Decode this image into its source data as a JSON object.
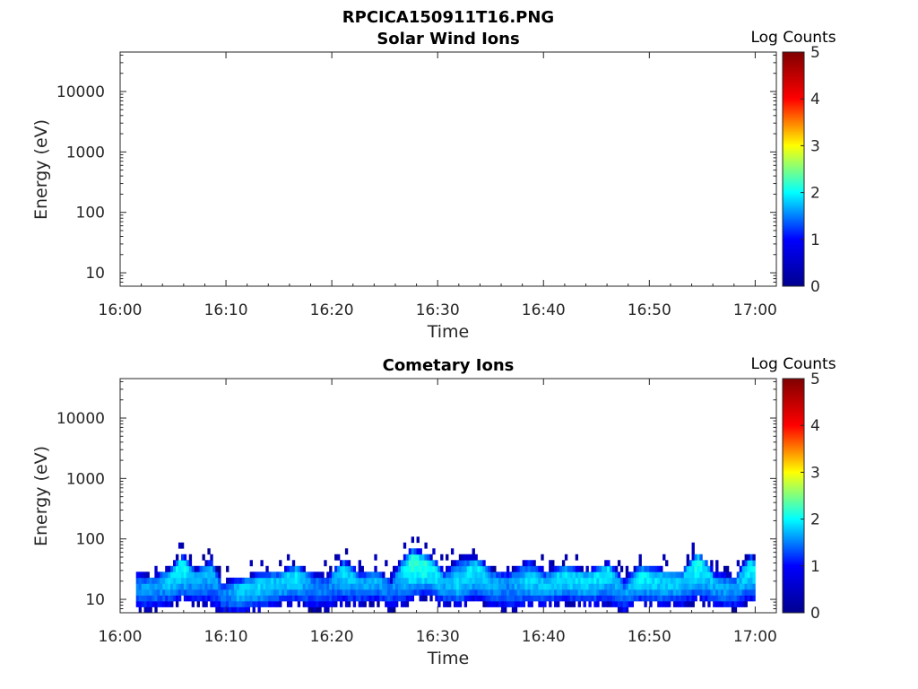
{
  "figure_title": "RPCICA150911T16.PNG",
  "colorbar": {
    "label": "Log Counts",
    "ticks": [
      "0",
      "1",
      "2",
      "3",
      "4",
      "5"
    ],
    "range": [
      0,
      5
    ],
    "colormap": [
      "#00008f",
      "#0000ff",
      "#00ffff",
      "#ffff00",
      "#ff0000",
      "#800000"
    ]
  },
  "chart_data": [
    {
      "type": "heatmap",
      "title": "Solar Wind Ions",
      "xlabel": "Time",
      "ylabel": "Energy (eV)",
      "x_ticks": [
        "16:00",
        "16:10",
        "16:20",
        "16:30",
        "16:40",
        "16:50",
        "17:00"
      ],
      "x_range_minutes": [
        0,
        62
      ],
      "y_ticks": [
        "10",
        "100",
        "1000",
        "10000"
      ],
      "y_range": [
        6,
        45000
      ],
      "y_scale": "log",
      "grid": false,
      "data": []
    },
    {
      "type": "heatmap",
      "title": "Cometary Ions",
      "xlabel": "Time",
      "ylabel": "Energy (eV)",
      "x_ticks": [
        "16:00",
        "16:10",
        "16:20",
        "16:30",
        "16:40",
        "16:50",
        "17:00"
      ],
      "x_range_minutes": [
        0,
        62
      ],
      "y_ticks": [
        "10",
        "100",
        "1000",
        "10000"
      ],
      "y_range": [
        6,
        45000
      ],
      "y_scale": "log",
      "grid": false,
      "data_time_range": [
        "16:01:30",
        "17:00:00"
      ],
      "band_profile": [
        {
          "t": 1.5,
          "peak_eV": 16,
          "low_eV": 7,
          "high_eV": 28,
          "peak_log_counts": 1.3
        },
        {
          "t": 3.0,
          "peak_eV": 17,
          "low_eV": 7,
          "high_eV": 25,
          "peak_log_counts": 1.4
        },
        {
          "t": 4.5,
          "peak_eV": 22,
          "low_eV": 8,
          "high_eV": 32,
          "peak_log_counts": 1.6
        },
        {
          "t": 5.8,
          "peak_eV": 40,
          "low_eV": 10,
          "high_eV": 55,
          "peak_log_counts": 2.0
        },
        {
          "t": 7.0,
          "peak_eV": 22,
          "low_eV": 9,
          "high_eV": 32,
          "peak_log_counts": 1.4
        },
        {
          "t": 8.5,
          "peak_eV": 30,
          "low_eV": 8,
          "high_eV": 45,
          "peak_log_counts": 1.5
        },
        {
          "t": 9.5,
          "peak_eV": 12,
          "low_eV": 6,
          "high_eV": 20,
          "peak_log_counts": 1.2
        },
        {
          "t": 11.0,
          "peak_eV": 15,
          "low_eV": 6,
          "high_eV": 22,
          "peak_log_counts": 1.6
        },
        {
          "t": 13.0,
          "peak_eV": 18,
          "low_eV": 7,
          "high_eV": 28,
          "peak_log_counts": 1.7
        },
        {
          "t": 15.0,
          "peak_eV": 20,
          "low_eV": 8,
          "high_eV": 30,
          "peak_log_counts": 1.6
        },
        {
          "t": 16.5,
          "peak_eV": 26,
          "low_eV": 9,
          "high_eV": 38,
          "peak_log_counts": 1.8
        },
        {
          "t": 18.0,
          "peak_eV": 18,
          "low_eV": 7,
          "high_eV": 28,
          "peak_log_counts": 1.3
        },
        {
          "t": 19.5,
          "peak_eV": 16,
          "low_eV": 7,
          "high_eV": 25,
          "peak_log_counts": 1.2
        },
        {
          "t": 21.0,
          "peak_eV": 32,
          "low_eV": 9,
          "high_eV": 45,
          "peak_log_counts": 1.8
        },
        {
          "t": 22.5,
          "peak_eV": 18,
          "low_eV": 8,
          "high_eV": 28,
          "peak_log_counts": 1.4
        },
        {
          "t": 24.0,
          "peak_eV": 22,
          "low_eV": 9,
          "high_eV": 32,
          "peak_log_counts": 1.5
        },
        {
          "t": 25.5,
          "peak_eV": 14,
          "low_eV": 7,
          "high_eV": 22,
          "peak_log_counts": 1.2
        },
        {
          "t": 27.5,
          "peak_eV": 45,
          "low_eV": 10,
          "high_eV": 70,
          "peak_log_counts": 2.1
        },
        {
          "t": 29.0,
          "peak_eV": 38,
          "low_eV": 12,
          "high_eV": 55,
          "peak_log_counts": 2.0
        },
        {
          "t": 30.5,
          "peak_eV": 18,
          "low_eV": 8,
          "high_eV": 30,
          "peak_log_counts": 1.5
        },
        {
          "t": 32.0,
          "peak_eV": 20,
          "low_eV": 8,
          "high_eV": 50,
          "peak_log_counts": 1.7
        },
        {
          "t": 33.5,
          "peak_eV": 35,
          "low_eV": 10,
          "high_eV": 50,
          "peak_log_counts": 1.8
        },
        {
          "t": 35.0,
          "peak_eV": 20,
          "low_eV": 8,
          "high_eV": 32,
          "peak_log_counts": 1.5
        },
        {
          "t": 36.5,
          "peak_eV": 18,
          "low_eV": 7,
          "high_eV": 28,
          "peak_log_counts": 1.3
        },
        {
          "t": 38.5,
          "peak_eV": 22,
          "low_eV": 8,
          "high_eV": 45,
          "peak_log_counts": 1.7
        },
        {
          "t": 40.0,
          "peak_eV": 18,
          "low_eV": 8,
          "high_eV": 30,
          "peak_log_counts": 1.6
        },
        {
          "t": 42.0,
          "peak_eV": 25,
          "low_eV": 9,
          "high_eV": 38,
          "peak_log_counts": 1.8
        },
        {
          "t": 44.0,
          "peak_eV": 20,
          "low_eV": 8,
          "high_eV": 30,
          "peak_log_counts": 1.7
        },
        {
          "t": 46.0,
          "peak_eV": 30,
          "low_eV": 9,
          "high_eV": 42,
          "peak_log_counts": 1.8
        },
        {
          "t": 47.5,
          "peak_eV": 13,
          "low_eV": 6,
          "high_eV": 22,
          "peak_log_counts": 1.3
        },
        {
          "t": 49.0,
          "peak_eV": 25,
          "low_eV": 9,
          "high_eV": 38,
          "peak_log_counts": 1.8
        },
        {
          "t": 51.0,
          "peak_eV": 22,
          "low_eV": 8,
          "high_eV": 32,
          "peak_log_counts": 1.7
        },
        {
          "t": 53.0,
          "peak_eV": 20,
          "low_eV": 8,
          "high_eV": 30,
          "peak_log_counts": 1.6
        },
        {
          "t": 54.5,
          "peak_eV": 45,
          "low_eV": 10,
          "high_eV": 60,
          "peak_log_counts": 2.0
        },
        {
          "t": 56.0,
          "peak_eV": 18,
          "low_eV": 8,
          "high_eV": 28,
          "peak_log_counts": 1.5
        },
        {
          "t": 58.0,
          "peak_eV": 16,
          "low_eV": 7,
          "high_eV": 25,
          "peak_log_counts": 1.4
        },
        {
          "t": 59.5,
          "peak_eV": 38,
          "low_eV": 10,
          "high_eV": 55,
          "peak_log_counts": 1.9
        },
        {
          "t": 60.0,
          "peak_eV": 25,
          "low_eV": 9,
          "high_eV": 40,
          "peak_log_counts": 1.8
        }
      ]
    }
  ]
}
